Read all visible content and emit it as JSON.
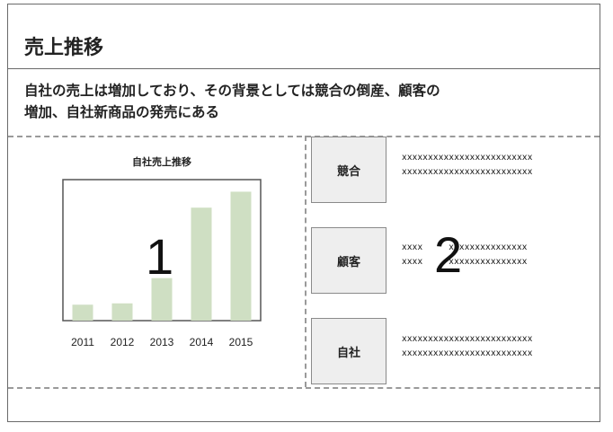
{
  "title": "売上推移",
  "lead": {
    "line1": "自社の売上は増加しており、その背景としては競合の倒産、顧客の",
    "line2": "増加、自社新商品の発売にある"
  },
  "chart_data": {
    "type": "bar",
    "title": "自社売上推移",
    "categories": [
      "2011",
      "2012",
      "2013",
      "2014",
      "2015"
    ],
    "values": [
      12,
      13,
      32,
      85,
      97
    ],
    "ylim": [
      0,
      100
    ],
    "bar_color": "#cfdfc3",
    "xlabel": "",
    "ylabel": ""
  },
  "markers": {
    "one": "1",
    "two": "2"
  },
  "factors": [
    {
      "label": "競合",
      "line1": "xxxxxxxxxxxxxxxxxxxxxxxxx",
      "line2": "xxxxxxxxxxxxxxxxxxxxxxxxx"
    },
    {
      "label": "顧客",
      "line1": "xxxx         xxxxxxxxxxxxxxx",
      "line2": "xxxx         xxxxxxxxxxxxxxx"
    },
    {
      "label": "自社",
      "line1": "xxxxxxxxxxxxxxxxxxxxxxxxx",
      "line2": "xxxxxxxxxxxxxxxxxxxxxxxxx"
    }
  ]
}
